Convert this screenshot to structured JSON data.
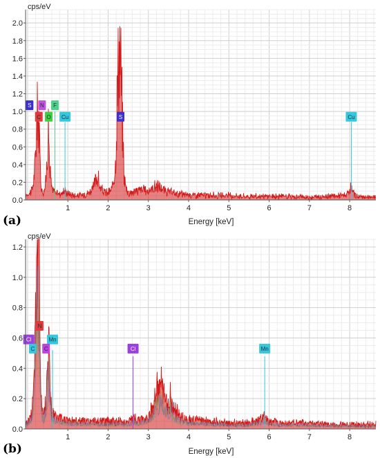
{
  "chart_data": [
    {
      "type": "line",
      "panel_label": "(a)",
      "yunit": "cps/eV",
      "xlabel": "Energy [keV]",
      "xlim": [
        -0.05,
        8.65
      ],
      "ylim": [
        0,
        2.15
      ],
      "xticks": [
        "1",
        "2",
        "3",
        "4",
        "5",
        "6",
        "7",
        "8"
      ],
      "yticks": [
        "0.0",
        "0.2",
        "0.4",
        "0.6",
        "0.8",
        "1.0",
        "1.2",
        "1.4",
        "1.6",
        "1.8",
        "2.0"
      ],
      "grid": true,
      "series": [
        {
          "color": "#d31a1a",
          "x": [
            0.0,
            0.12,
            0.18,
            0.24,
            0.277,
            0.3,
            0.34,
            0.4,
            0.46,
            0.5,
            0.525,
            0.55,
            0.6,
            0.68,
            0.8,
            0.93,
            0.98,
            1.1,
            1.3,
            1.5,
            1.62,
            1.7,
            1.74,
            1.8,
            1.9,
            2.0,
            2.1,
            2.18,
            2.22,
            2.26,
            2.3,
            2.33,
            2.36,
            2.4,
            2.46,
            2.52,
            2.6,
            2.7,
            2.8,
            2.9,
            3.0,
            3.1,
            3.2,
            3.3,
            3.4,
            3.5,
            3.7,
            4.0,
            4.5,
            5.0,
            5.5,
            6.0,
            6.5,
            7.0,
            7.5,
            7.95,
            8.04,
            8.12,
            8.3,
            8.65
          ],
          "y": [
            0.06,
            0.12,
            0.35,
            0.95,
            0.98,
            0.55,
            0.12,
            0.09,
            0.22,
            0.68,
            0.74,
            0.38,
            0.12,
            0.09,
            0.07,
            0.1,
            0.08,
            0.06,
            0.05,
            0.08,
            0.12,
            0.24,
            0.27,
            0.13,
            0.09,
            0.08,
            0.12,
            0.4,
            1.05,
            1.62,
            1.72,
            1.3,
            0.8,
            0.25,
            0.12,
            0.08,
            0.09,
            0.1,
            0.12,
            0.11,
            0.1,
            0.13,
            0.16,
            0.14,
            0.1,
            0.09,
            0.07,
            0.06,
            0.05,
            0.05,
            0.04,
            0.04,
            0.04,
            0.03,
            0.04,
            0.06,
            0.13,
            0.05,
            0.03,
            0.03
          ]
        }
      ],
      "peak_labels": [
        {
          "text": "S",
          "x": 0.05,
          "y": 1.07,
          "color": "#3a2fd0"
        },
        {
          "text": "N",
          "x": 0.36,
          "y": 1.07,
          "color": "#c050e0"
        },
        {
          "text": "F",
          "x": 0.68,
          "y": 1.07,
          "color": "#4ed08a"
        },
        {
          "text": "C",
          "x": 0.28,
          "y": 0.94,
          "color": "#e03a3a"
        },
        {
          "text": "O",
          "x": 0.525,
          "y": 0.94,
          "color": "#3fd03f"
        },
        {
          "text": "Cu",
          "x": 0.93,
          "y": 0.94,
          "color": "#35c8dd"
        },
        {
          "text": "S",
          "x": 2.31,
          "y": 0.94,
          "color": "#3a2fd0"
        },
        {
          "text": "Cu",
          "x": 8.04,
          "y": 0.94,
          "color": "#35c8dd"
        }
      ],
      "marker_lines": [
        {
          "x": 0.68,
          "y": 1.0,
          "color": "#4ed08a"
        },
        {
          "x": 0.93,
          "y": 0.88,
          "color": "#35c8dd"
        },
        {
          "x": 8.04,
          "y": 0.88,
          "color": "#35c8dd"
        }
      ]
    },
    {
      "type": "line",
      "panel_label": "(b)",
      "yunit": "cps/eV",
      "xlabel": "Energy [keV]",
      "xlim": [
        -0.05,
        8.65
      ],
      "ylim": [
        0,
        1.25
      ],
      "xticks": [
        "1",
        "2",
        "3",
        "4",
        "5",
        "6",
        "7",
        "8"
      ],
      "yticks": [
        "0.0",
        "0.2",
        "0.4",
        "0.6",
        "0.8",
        "1.0",
        "1.2"
      ],
      "grid": true,
      "series": [
        {
          "color": "#d31a1a",
          "x": [
            0.0,
            0.1,
            0.15,
            0.2,
            0.24,
            0.277,
            0.31,
            0.35,
            0.4,
            0.46,
            0.5,
            0.525,
            0.55,
            0.6,
            0.7,
            0.8,
            1.0,
            1.5,
            2.0,
            2.5,
            2.62,
            2.8,
            3.0,
            3.1,
            3.2,
            3.3,
            3.35,
            3.4,
            3.5,
            3.55,
            3.6,
            3.8,
            4.0,
            4.5,
            5.0,
            5.5,
            5.89,
            6.0,
            6.5,
            7.0,
            7.5,
            8.0,
            8.65
          ],
          "y": [
            0.05,
            0.1,
            0.3,
            0.8,
            1.25,
            1.25,
            0.6,
            0.14,
            0.1,
            0.2,
            0.5,
            0.6,
            0.35,
            0.12,
            0.08,
            0.07,
            0.06,
            0.05,
            0.05,
            0.05,
            0.07,
            0.06,
            0.08,
            0.14,
            0.24,
            0.33,
            0.24,
            0.2,
            0.15,
            0.23,
            0.14,
            0.08,
            0.06,
            0.05,
            0.04,
            0.04,
            0.08,
            0.05,
            0.04,
            0.04,
            0.03,
            0.03,
            0.03
          ]
        }
      ],
      "peak_labels": [
        {
          "text": "N",
          "x": 0.3,
          "y": 0.68,
          "color": "#e03a3a"
        },
        {
          "text": "Cl",
          "x": 0.03,
          "y": 0.59,
          "color": "#9a40e0"
        },
        {
          "text": "Mn",
          "x": 0.62,
          "y": 0.59,
          "color": "#35c8dd"
        },
        {
          "text": "C",
          "x": 0.13,
          "y": 0.53,
          "color": "#35c8dd"
        },
        {
          "text": "C",
          "x": 0.46,
          "y": 0.53,
          "color": "#c040e0"
        },
        {
          "text": "Cl",
          "x": 2.62,
          "y": 0.53,
          "color": "#9a40e0"
        },
        {
          "text": "Mn",
          "x": 5.89,
          "y": 0.53,
          "color": "#35c8dd"
        }
      ],
      "marker_lines": [
        {
          "x": 0.62,
          "y": 0.52,
          "color": "#35c8dd"
        },
        {
          "x": 2.62,
          "y": 0.48,
          "color": "#9a40e0"
        },
        {
          "x": 5.89,
          "y": 0.48,
          "color": "#35c8dd"
        }
      ]
    }
  ]
}
